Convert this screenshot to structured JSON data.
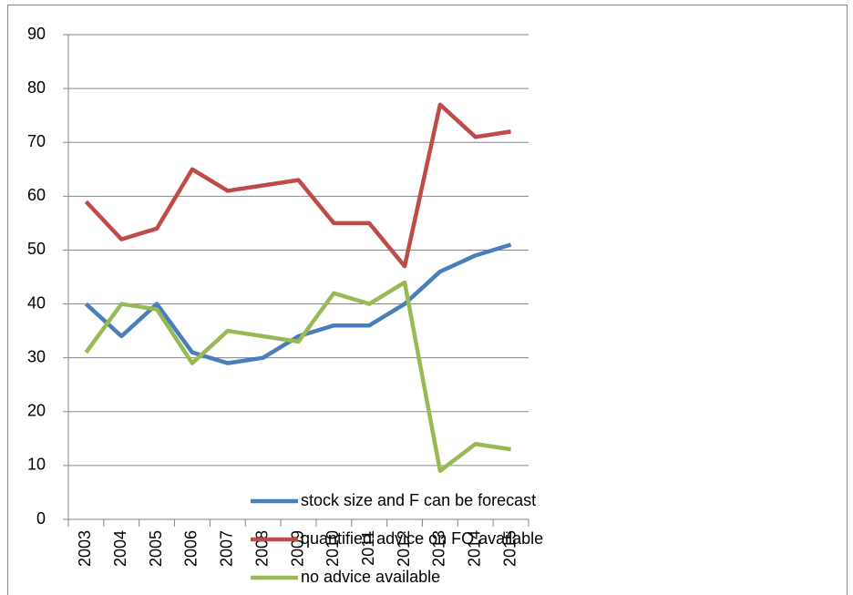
{
  "chart_data": {
    "type": "line",
    "categories": [
      "2003",
      "2004",
      "2005",
      "2006",
      "2007",
      "2008",
      "2009",
      "2010",
      "2011",
      "2012",
      "2013",
      "2014",
      "2015"
    ],
    "series": [
      {
        "name": "stock size and F can be forecast",
        "color": "#4a7ebb",
        "values": [
          40,
          34,
          40,
          31,
          29,
          30,
          34,
          36,
          36,
          40,
          46,
          49,
          51
        ]
      },
      {
        "name": "quantified advice on FO available",
        "color": "#be4b48",
        "values": [
          59,
          52,
          54,
          65,
          61,
          62,
          63,
          55,
          55,
          47,
          77,
          71,
          72
        ]
      },
      {
        "name": "no advice available",
        "color": "#98b954",
        "values": [
          31,
          40,
          39,
          29,
          35,
          34,
          33,
          42,
          40,
          44,
          9,
          14,
          13
        ]
      }
    ],
    "ylim": [
      0,
      90
    ],
    "yticks": [
      0,
      10,
      20,
      30,
      40,
      50,
      60,
      70,
      80,
      90
    ],
    "grid": true,
    "legend": "bottom"
  }
}
